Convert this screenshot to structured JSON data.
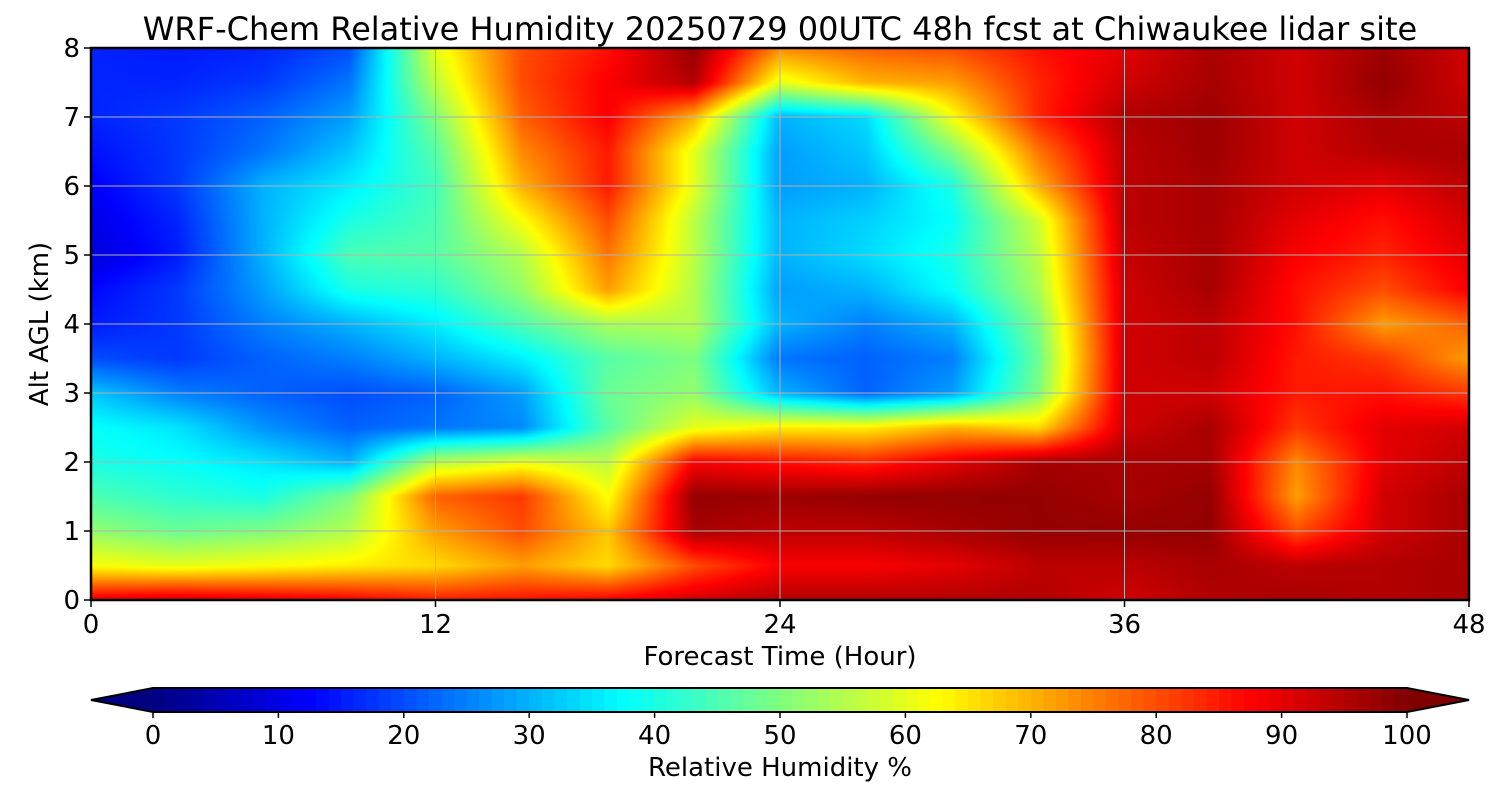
{
  "chart_data": {
    "type": "heatmap",
    "title": "WRF-Chem Relative Humidity 20250729 00UTC 48h fcst at Chiwaukee lidar site",
    "xlabel": "Forecast Time (Hour)",
    "ylabel": "Alt AGL (km)",
    "xlim": [
      0,
      48
    ],
    "ylim": [
      0,
      8
    ],
    "x_ticks": [
      0,
      12,
      24,
      36,
      48
    ],
    "x_tick_labels": [
      "0",
      "12",
      "24",
      "36",
      "48"
    ],
    "y_ticks": [
      0,
      1,
      2,
      3,
      4,
      5,
      6,
      7,
      8
    ],
    "y_tick_labels": [
      "0",
      "1",
      "2",
      "3",
      "4",
      "5",
      "6",
      "7",
      "8"
    ],
    "grid": true,
    "colormap": "jet",
    "x": [
      0,
      3,
      6,
      9,
      12,
      15,
      18,
      21,
      24,
      27,
      30,
      33,
      36,
      39,
      42,
      45,
      48
    ],
    "y": [
      0,
      0.5,
      1,
      1.5,
      2,
      2.5,
      3,
      3.5,
      4,
      4.5,
      5,
      5.5,
      6,
      6.5,
      7,
      7.5,
      8
    ],
    "z": [
      [
        90,
        92,
        90,
        88,
        85,
        86,
        88,
        92,
        95,
        95,
        95,
        95,
        92,
        95,
        96,
        95,
        96
      ],
      [
        62,
        60,
        62,
        64,
        66,
        72,
        66,
        80,
        88,
        88,
        90,
        94,
        94,
        96,
        94,
        95,
        96
      ],
      [
        52,
        48,
        50,
        55,
        72,
        80,
        68,
        96,
        94,
        94,
        96,
        98,
        98,
        98,
        80,
        92,
        96
      ],
      [
        45,
        42,
        40,
        50,
        78,
        82,
        62,
        98,
        97,
        98,
        98,
        98,
        96,
        98,
        72,
        92,
        96
      ],
      [
        40,
        38,
        35,
        30,
        55,
        60,
        56,
        88,
        86,
        84,
        90,
        96,
        96,
        96,
        74,
        90,
        94
      ],
      [
        38,
        35,
        27,
        22,
        24,
        26,
        46,
        60,
        64,
        64,
        70,
        66,
        92,
        96,
        82,
        90,
        92
      ],
      [
        32,
        25,
        22,
        20,
        22,
        28,
        48,
        52,
        30,
        22,
        28,
        50,
        92,
        92,
        85,
        86,
        82
      ],
      [
        20,
        18,
        22,
        25,
        30,
        36,
        46,
        50,
        24,
        22,
        25,
        48,
        92,
        94,
        85,
        82,
        72
      ],
      [
        15,
        18,
        25,
        30,
        36,
        45,
        54,
        55,
        30,
        25,
        30,
        50,
        92,
        94,
        86,
        72,
        78
      ],
      [
        13,
        18,
        28,
        40,
        42,
        52,
        72,
        55,
        28,
        30,
        38,
        54,
        92,
        96,
        86,
        80,
        88
      ],
      [
        9,
        15,
        30,
        45,
        46,
        55,
        76,
        56,
        30,
        34,
        40,
        56,
        93,
        96,
        88,
        84,
        90
      ],
      [
        10,
        16,
        30,
        40,
        45,
        62,
        80,
        56,
        30,
        33,
        38,
        58,
        94,
        96,
        90,
        86,
        92
      ],
      [
        12,
        18,
        30,
        36,
        44,
        70,
        85,
        60,
        28,
        30,
        40,
        70,
        94,
        96,
        92,
        90,
        94
      ],
      [
        14,
        18,
        24,
        32,
        46,
        74,
        85,
        60,
        28,
        32,
        50,
        76,
        94,
        97,
        92,
        95,
        96
      ],
      [
        16,
        18,
        22,
        28,
        50,
        78,
        88,
        70,
        30,
        34,
        62,
        84,
        95,
        97,
        92,
        96,
        94
      ],
      [
        16,
        16,
        18,
        24,
        56,
        80,
        88,
        95,
        60,
        70,
        72,
        84,
        92,
        96,
        92,
        98,
        92
      ],
      [
        16,
        15,
        16,
        20,
        60,
        80,
        86,
        98,
        74,
        78,
        80,
        86,
        90,
        96,
        92,
        97,
        92
      ]
    ],
    "colorbar": {
      "label": "Relative Humidity %",
      "min": 0,
      "max": 100,
      "ticks": [
        0,
        10,
        20,
        30,
        40,
        50,
        60,
        70,
        80,
        90,
        100
      ],
      "tick_labels": [
        "0",
        "10",
        "20",
        "30",
        "40",
        "50",
        "60",
        "70",
        "80",
        "90",
        "100"
      ],
      "extend": "both",
      "orientation": "horizontal"
    }
  }
}
